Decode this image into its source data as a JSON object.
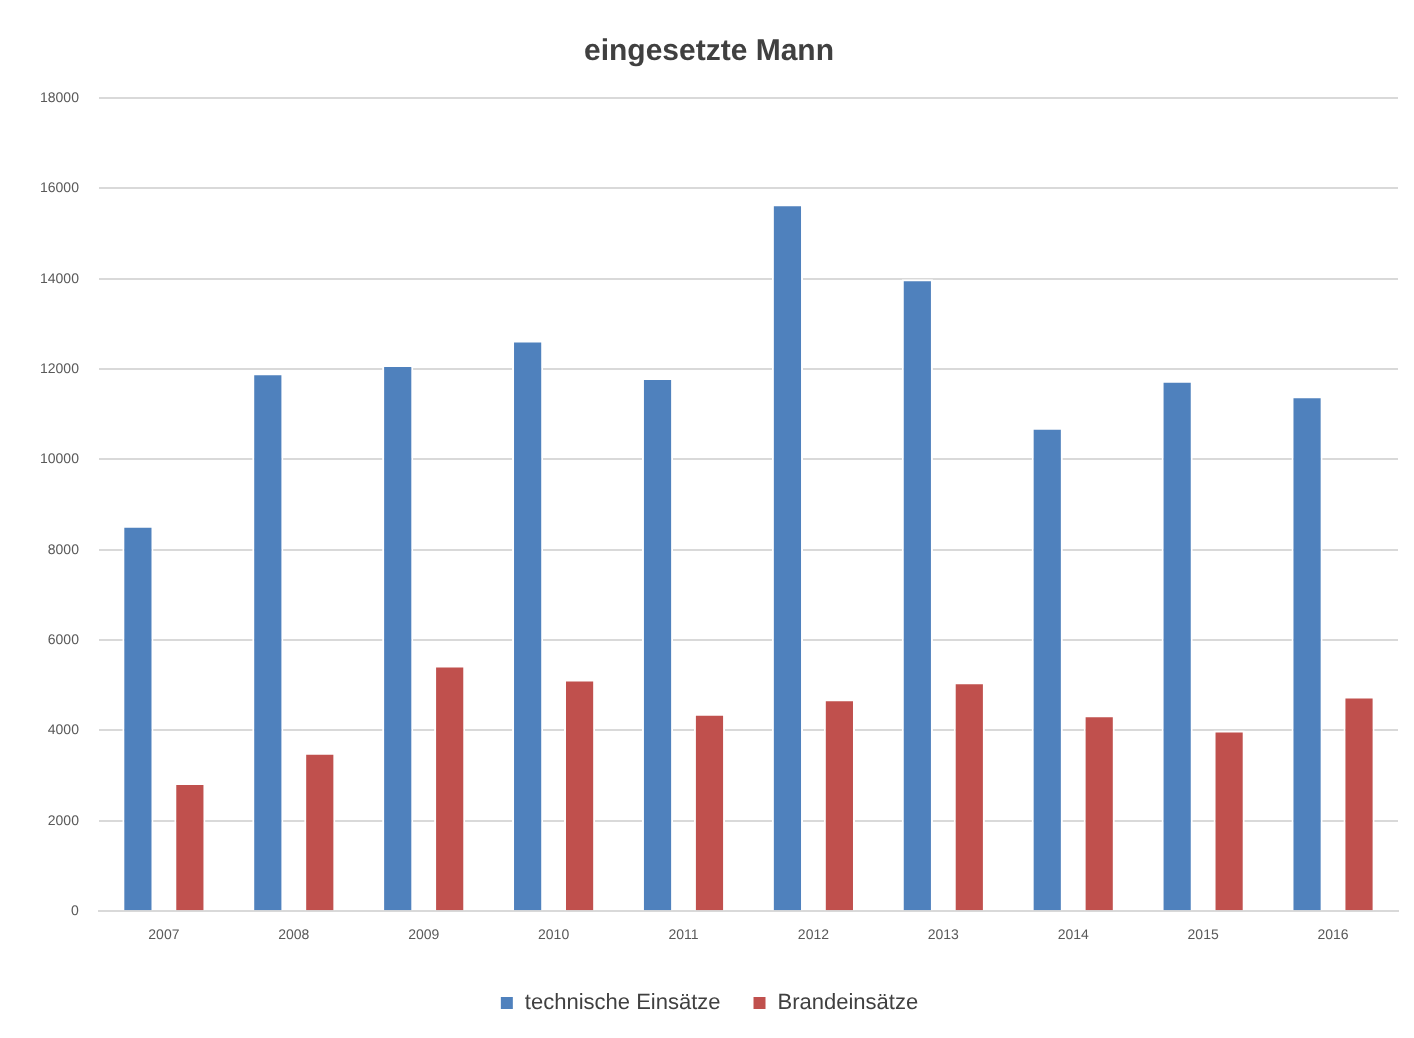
{
  "chart_data": {
    "type": "bar",
    "title": "eingesetzte Mann",
    "categories": [
      "2007",
      "2008",
      "2009",
      "2010",
      "2011",
      "2012",
      "2013",
      "2014",
      "2015",
      "2016"
    ],
    "series": [
      {
        "name": "technische Einsätze",
        "color": "#4f81bd",
        "values": [
          8530,
          11910,
          12090,
          12630,
          11800,
          15650,
          13990,
          10700,
          11740,
          11400
        ]
      },
      {
        "name": "Brandeinsätze",
        "color": "#c0504d",
        "values": [
          2840,
          3510,
          5440,
          5130,
          4370,
          4690,
          5070,
          4340,
          4000,
          4750
        ]
      }
    ],
    "ylim": [
      0,
      18000
    ],
    "yticks": [
      0,
      2000,
      4000,
      6000,
      8000,
      10000,
      12000,
      14000,
      16000,
      18000
    ],
    "grid": "y",
    "legend": "bottom"
  }
}
